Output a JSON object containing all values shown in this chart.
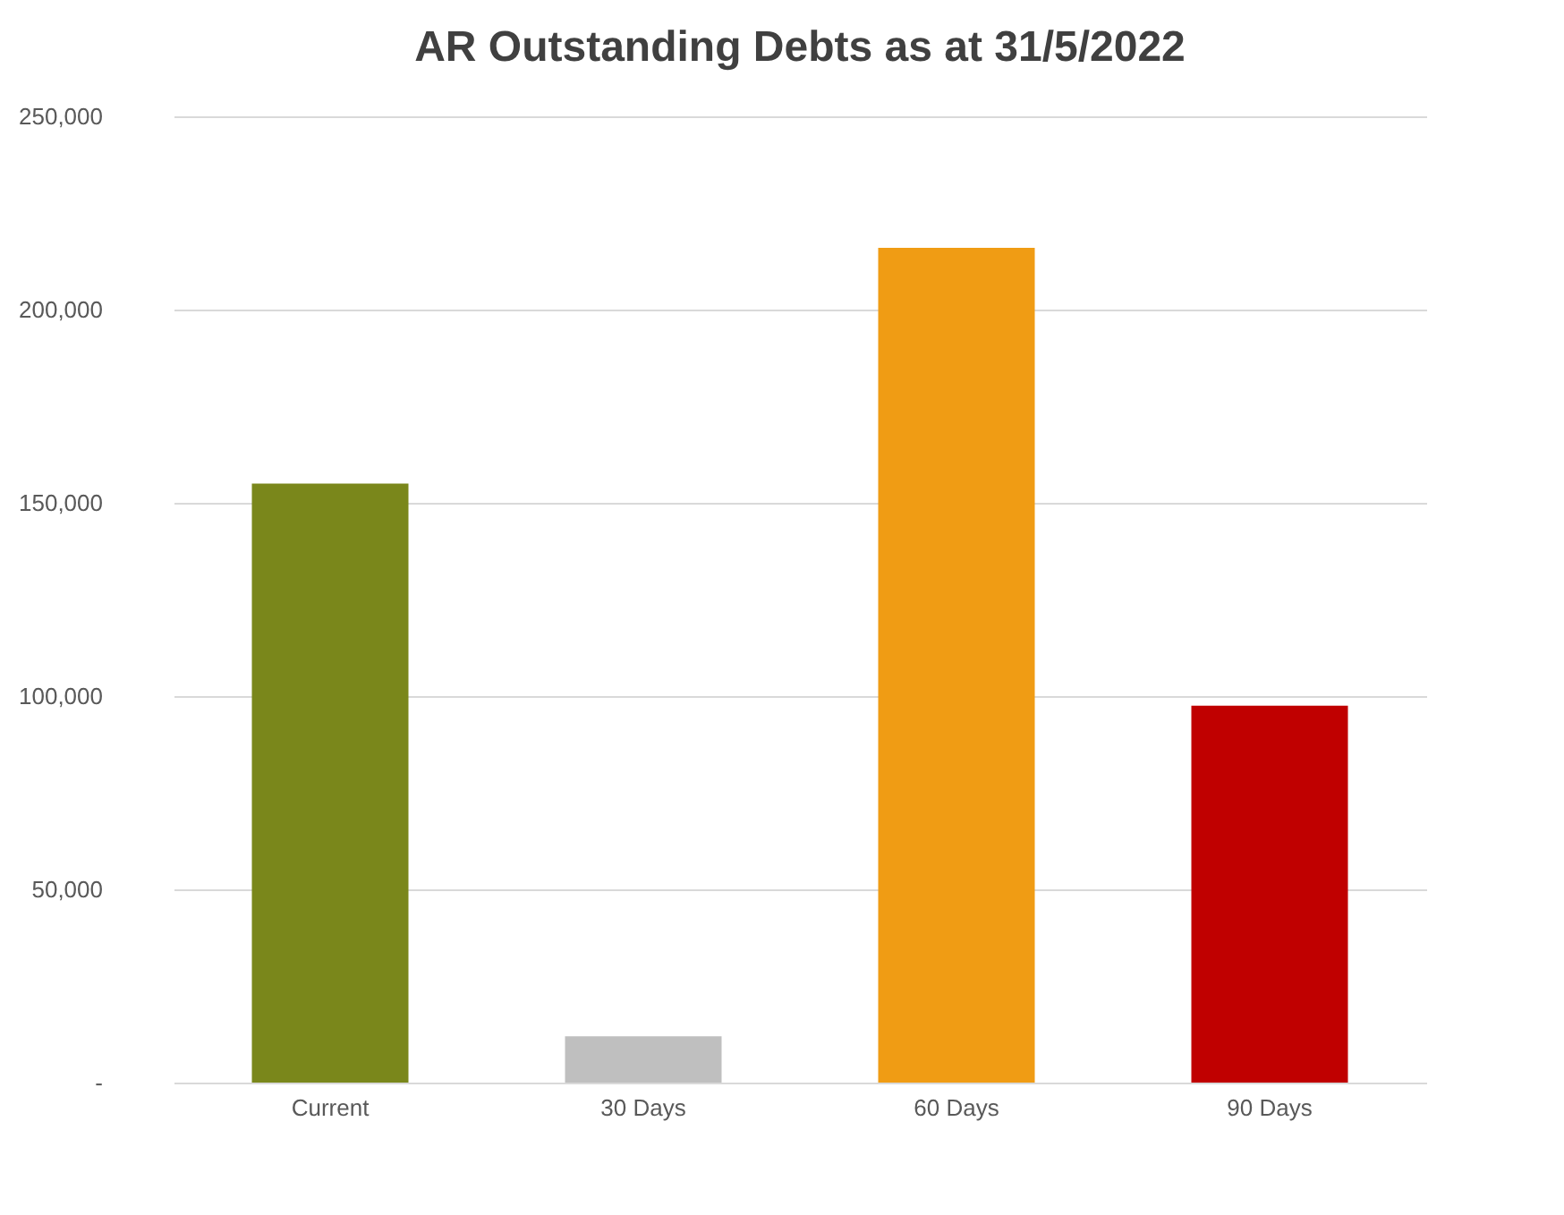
{
  "chart_data": {
    "type": "bar",
    "title": "AR Outstanding Debts as at 31/5/2022",
    "categories": [
      "Current",
      "30 Days",
      "60 Days",
      "90 Days"
    ],
    "values": [
      155000,
      12000,
      216000,
      97500
    ],
    "colors": [
      "#7a871b",
      "#bfbfbf",
      "#f09c14",
      "#c00000"
    ],
    "ylim": [
      0,
      250000
    ],
    "yticks": [
      {
        "value": 0,
        "label": "-"
      },
      {
        "value": 50000,
        "label": "50,000"
      },
      {
        "value": 100000,
        "label": "100,000"
      },
      {
        "value": 150000,
        "label": "150,000"
      },
      {
        "value": 200000,
        "label": "200,000"
      },
      {
        "value": 250000,
        "label": "250,000"
      }
    ],
    "grid": "y"
  }
}
